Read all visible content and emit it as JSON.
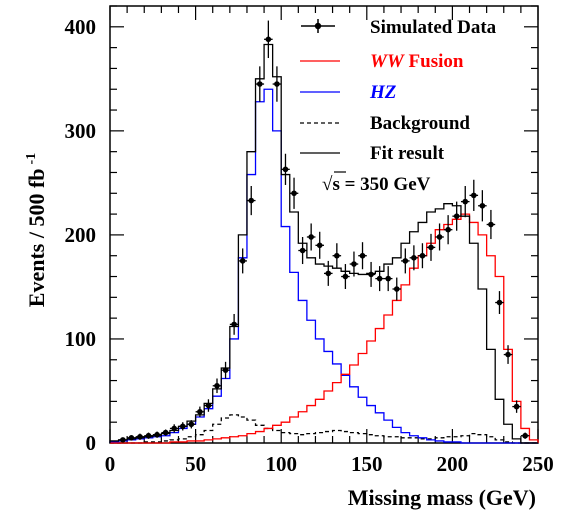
{
  "chart_data": {
    "type": "histogram",
    "xlabel": "Missing mass (GeV)",
    "ylabel": "Events / 500 fb",
    "ylabel_sup": "-1",
    "xlim": [
      0,
      250
    ],
    "ylim": [
      0,
      420
    ],
    "xticks": [
      "0",
      "50",
      "100",
      "150",
      "200",
      "250"
    ],
    "yticks": [
      "0",
      "100",
      "200",
      "300",
      "400"
    ],
    "annotation": {
      "prefix": "√",
      "symbol": "s",
      "text": " = 350 GeV"
    },
    "bin_width": 5,
    "bin_edges_start": 0,
    "legend": [
      {
        "label": "Simulated Data",
        "style": "points",
        "color": "#000000"
      },
      {
        "label_italic": "WW",
        "label_rest": " Fusion",
        "style": "line",
        "color": "#ff0000"
      },
      {
        "label_italic": "HZ",
        "label_rest": "",
        "style": "line",
        "color": "#0000ff"
      },
      {
        "label": "Background",
        "style": "dashed",
        "color": "#000000"
      },
      {
        "label": "Fit result",
        "style": "line",
        "color": "#000000"
      }
    ],
    "series": [
      {
        "name": "Fit result",
        "color": "#000000",
        "values": [
          2,
          3,
          4,
          5,
          6,
          7,
          9,
          12,
          16,
          21,
          27,
          38,
          52,
          72,
          112,
          200,
          280,
          350,
          383,
          352,
          258,
          222,
          192,
          178,
          172,
          170,
          168,
          165,
          163,
          162,
          163,
          165,
          172,
          178,
          192,
          203,
          212,
          222,
          225,
          230,
          228,
          218,
          192,
          148,
          90,
          42,
          18,
          4,
          0,
          0
        ]
      },
      {
        "name": "HZ",
        "color": "#0000ff",
        "values": [
          1,
          2,
          3,
          4,
          5,
          6,
          7,
          10,
          14,
          18,
          25,
          33,
          45,
          62,
          100,
          178,
          258,
          328,
          340,
          300,
          208,
          164,
          137,
          118,
          100,
          88,
          76,
          65,
          54,
          44,
          36,
          29,
          22,
          15,
          10,
          7,
          5,
          3,
          2,
          1,
          1,
          0,
          0,
          0,
          0,
          0,
          0,
          0,
          0,
          0
        ]
      },
      {
        "name": "WW Fusion",
        "color": "#ff0000",
        "values": [
          0,
          0,
          0,
          0,
          0,
          0,
          0,
          1,
          1,
          2,
          2,
          3,
          4,
          5,
          6,
          7,
          9,
          11,
          14,
          17,
          20,
          25,
          30,
          36,
          42,
          50,
          58,
          66,
          75,
          86,
          98,
          110,
          123,
          137,
          152,
          168,
          180,
          192,
          205,
          210,
          215,
          220,
          212,
          200,
          180,
          160,
          90,
          40,
          14,
          3
        ]
      },
      {
        "name": "Background",
        "color": "#000000",
        "values": [
          0,
          0,
          0,
          0,
          1,
          1,
          2,
          3,
          4,
          6,
          8,
          12,
          18,
          24,
          27,
          25,
          22,
          17,
          14,
          12,
          10,
          9,
          8,
          9,
          10,
          11,
          12,
          11,
          10,
          9,
          8,
          7,
          6,
          6,
          5,
          5,
          4,
          4,
          5,
          6,
          6,
          7,
          9,
          8,
          6,
          3,
          1,
          0,
          0,
          0
        ]
      },
      {
        "name": "Simulated Data",
        "color": "#000000",
        "points": [
          [
            7.5,
            3,
            2
          ],
          [
            12.5,
            5,
            2
          ],
          [
            17.5,
            6,
            3
          ],
          [
            22.5,
            7,
            3
          ],
          [
            27.5,
            8,
            3
          ],
          [
            32.5,
            10,
            3
          ],
          [
            37.5,
            14,
            4
          ],
          [
            42.5,
            16,
            4
          ],
          [
            47.5,
            18,
            4
          ],
          [
            52.5,
            30,
            5
          ],
          [
            57.5,
            36,
            6
          ],
          [
            62.5,
            55,
            7
          ],
          [
            67.5,
            70,
            8
          ],
          [
            72.5,
            114,
            10
          ],
          [
            77.5,
            175,
            12
          ],
          [
            82.5,
            233,
            14
          ],
          [
            87.5,
            345,
            17
          ],
          [
            92.5,
            388,
            18
          ],
          [
            97.5,
            345,
            17
          ],
          [
            102.5,
            263,
            15
          ],
          [
            107.5,
            240,
            15
          ],
          [
            112.5,
            185,
            13
          ],
          [
            117.5,
            198,
            13
          ],
          [
            122.5,
            190,
            13
          ],
          [
            127.5,
            163,
            12
          ],
          [
            132.5,
            180,
            12
          ],
          [
            137.5,
            160,
            12
          ],
          [
            142.5,
            172,
            12
          ],
          [
            147.5,
            180,
            13
          ],
          [
            152.5,
            162,
            12
          ],
          [
            157.5,
            158,
            12
          ],
          [
            162.5,
            158,
            12
          ],
          [
            167.5,
            148,
            11
          ],
          [
            172.5,
            175,
            12
          ],
          [
            177.5,
            178,
            12
          ],
          [
            182.5,
            180,
            12
          ],
          [
            187.5,
            188,
            13
          ],
          [
            192.5,
            198,
            13
          ],
          [
            197.5,
            205,
            14
          ],
          [
            202.5,
            218,
            14
          ],
          [
            207.5,
            232,
            15
          ],
          [
            212.5,
            238,
            15
          ],
          [
            217.5,
            228,
            15
          ],
          [
            222.5,
            210,
            14
          ],
          [
            227.5,
            135,
            11
          ],
          [
            232.5,
            85,
            9
          ],
          [
            237.5,
            35,
            6
          ],
          [
            242.5,
            7,
            3
          ]
        ]
      }
    ]
  }
}
